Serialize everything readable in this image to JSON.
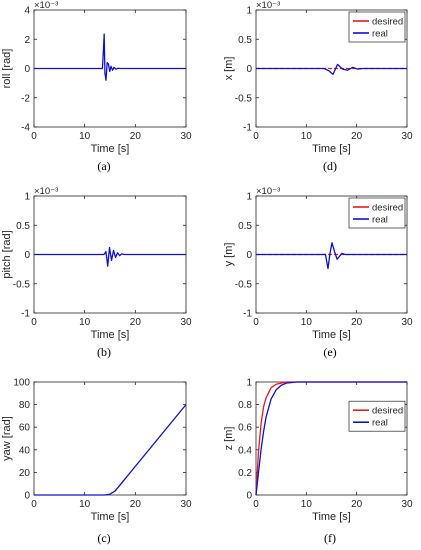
{
  "colors": {
    "desired": "#e8191c",
    "real": "#1010d0",
    "axis": "#262626",
    "tick_text": "#262626"
  },
  "chart_data": [
    {
      "id": "a",
      "caption": "(a)",
      "type": "line",
      "xlabel": "Time [s]",
      "ylabel": "roll [rad]",
      "exponent": "×10⁻³",
      "xlim": [
        0,
        30
      ],
      "ylim": [
        -4,
        4
      ],
      "xticks": [
        "0",
        "10",
        "20",
        "30"
      ],
      "yticks": [
        "-4",
        "-2",
        "0",
        "2",
        "4"
      ],
      "legend": null,
      "series": [
        {
          "key": "real",
          "x": [
            0,
            13.5,
            13.7,
            13.85,
            14.0,
            14.2,
            14.45,
            14.7,
            14.95,
            15.2,
            15.5,
            15.8,
            16.2,
            16.6,
            17.0,
            30
          ],
          "y": [
            0,
            0,
            1.2,
            2.35,
            -0.3,
            -0.8,
            0.4,
            0.3,
            -0.2,
            0.15,
            -0.12,
            0.08,
            -0.05,
            0.02,
            0,
            0
          ]
        }
      ]
    },
    {
      "id": "b",
      "caption": "(b)",
      "type": "line",
      "xlabel": "Time [s]",
      "ylabel": "pitch [rad]",
      "exponent": "×10⁻³",
      "xlim": [
        0,
        30
      ],
      "ylim": [
        -1,
        1
      ],
      "xticks": [
        "0",
        "10",
        "20",
        "30"
      ],
      "yticks": [
        "-1",
        "-0.5",
        "0",
        "0.5",
        "1"
      ],
      "legend": null,
      "series": [
        {
          "key": "real",
          "x": [
            0,
            13.8,
            14.2,
            14.55,
            14.9,
            15.3,
            15.7,
            16.1,
            16.5,
            16.9,
            17.3,
            17.8,
            30
          ],
          "y": [
            0,
            0,
            0.05,
            -0.2,
            0.12,
            -0.1,
            0.07,
            -0.05,
            0.03,
            -0.02,
            0.01,
            0,
            0
          ]
        }
      ]
    },
    {
      "id": "c",
      "caption": "(c)",
      "type": "line",
      "xlabel": "Time [s]",
      "ylabel": "yaw [rad]",
      "exponent": "",
      "xlim": [
        0,
        30
      ],
      "ylim": [
        0,
        100
      ],
      "xticks": [
        "0",
        "10",
        "20",
        "30"
      ],
      "yticks": [
        "0",
        "20",
        "40",
        "60",
        "80",
        "100"
      ],
      "legend": null,
      "series": [
        {
          "key": "real",
          "x": [
            0,
            14,
            15,
            16,
            30
          ],
          "y": [
            0,
            0,
            0.8,
            3.5,
            80
          ]
        }
      ]
    },
    {
      "id": "d",
      "caption": "(d)",
      "type": "line",
      "xlabel": "Time [s]",
      "ylabel": "x [m]",
      "exponent": "×10⁻³",
      "xlim": [
        0,
        30
      ],
      "ylim": [
        -1,
        1
      ],
      "xticks": [
        "0",
        "10",
        "20",
        "30"
      ],
      "yticks": [
        "-1",
        "-0.5",
        "0",
        "0.5",
        "1"
      ],
      "legend": {
        "position": "top-right",
        "entries": [
          "desired",
          "real"
        ]
      },
      "series": [
        {
          "key": "desired",
          "x": [
            0,
            30
          ],
          "y": [
            0,
            0
          ]
        },
        {
          "key": "real",
          "x": [
            0,
            13.5,
            14.5,
            15.3,
            16.2,
            17.2,
            18.2,
            19.2,
            20.2,
            21.2,
            30
          ],
          "y": [
            0,
            0,
            -0.04,
            -0.1,
            0.07,
            -0.01,
            -0.03,
            0.02,
            -0.01,
            0,
            0
          ]
        }
      ]
    },
    {
      "id": "e",
      "caption": "(e)",
      "type": "line",
      "xlabel": "Time [s]",
      "ylabel": "y [m]",
      "exponent": "×10⁻³",
      "xlim": [
        0,
        30
      ],
      "ylim": [
        -1,
        1
      ],
      "xticks": [
        "0",
        "10",
        "20",
        "30"
      ],
      "yticks": [
        "-1",
        "-0.5",
        "0",
        "0.5",
        "1"
      ],
      "legend": {
        "position": "top-right",
        "entries": [
          "desired",
          "real"
        ]
      },
      "series": [
        {
          "key": "desired",
          "x": [
            0,
            30
          ],
          "y": [
            0,
            0
          ]
        },
        {
          "key": "real",
          "x": [
            0,
            13.8,
            14.3,
            14.7,
            15.1,
            15.6,
            16.1,
            16.6,
            17.1,
            17.7,
            18.3,
            30
          ],
          "y": [
            0,
            0,
            -0.24,
            0.02,
            0.2,
            0.05,
            -0.08,
            -0.03,
            0.02,
            0,
            0,
            0
          ]
        }
      ]
    },
    {
      "id": "f",
      "caption": "(f)",
      "type": "line",
      "xlabel": "Time [s]",
      "ylabel": "z [m]",
      "exponent": "",
      "xlim": [
        0,
        30
      ],
      "ylim": [
        0,
        1
      ],
      "xticks": [
        "0",
        "10",
        "20",
        "30"
      ],
      "yticks": [
        "0",
        "0.2",
        "0.4",
        "0.6",
        "0.8",
        "1"
      ],
      "legend": {
        "position": "right",
        "entries": [
          "desired",
          "real"
        ]
      },
      "series": [
        {
          "key": "desired",
          "x": [
            0,
            0.5,
            1,
            1.5,
            2,
            3,
            4,
            5,
            6,
            8,
            30
          ],
          "y": [
            0,
            0.39,
            0.63,
            0.78,
            0.86,
            0.95,
            0.98,
            0.99,
            1,
            1,
            1
          ]
        },
        {
          "key": "real",
          "x": [
            0,
            0.5,
            1,
            1.5,
            2,
            3,
            4,
            5,
            6,
            8,
            30
          ],
          "y": [
            0,
            0.2,
            0.4,
            0.56,
            0.69,
            0.85,
            0.93,
            0.97,
            0.99,
            1,
            1
          ]
        }
      ]
    }
  ]
}
